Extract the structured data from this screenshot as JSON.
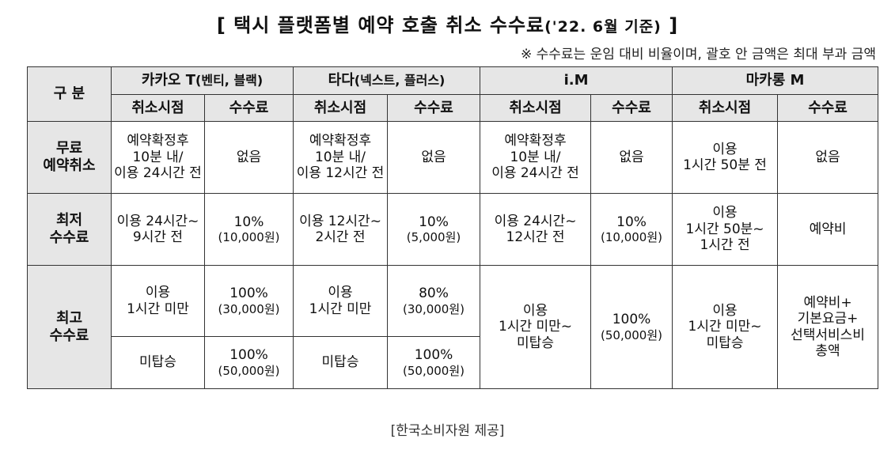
{
  "title": {
    "main": "[ 택시 플랫폼별 예약 호출 취소 수수료",
    "paren": "('22. 6월 기준)",
    "close": " ]"
  },
  "note": "※ 수수료는 운임 대비 비율이며, 괄호 안 금액은 최대 부과 금액",
  "table": {
    "corner": "구 분",
    "platforms": [
      {
        "name": "카카오 T",
        "sub": "(벤티, 블랙)"
      },
      {
        "name": "타다",
        "sub": "(넥스트, 플러스)"
      },
      {
        "name": "i.M",
        "sub": ""
      },
      {
        "name": "마카롱 M",
        "sub": ""
      }
    ],
    "col_cancel": "취소시점",
    "col_fee": "수수료",
    "rows": {
      "free": {
        "label": [
          "무료",
          "예약취소"
        ],
        "kakao_time": [
          "예약확정후",
          "10분 내/",
          "이용 24시간 전"
        ],
        "kakao_fee": [
          "없음"
        ],
        "tada_time": [
          "예약확정후",
          "10분 내/",
          "이용 12시간 전"
        ],
        "tada_fee": [
          "없음"
        ],
        "im_time": [
          "예약확정후",
          "10분 내/",
          "이용 24시간 전"
        ],
        "im_fee": [
          "없음"
        ],
        "macaron_time": [
          "이용",
          "1시간 50분 전"
        ],
        "macaron_fee": [
          "없음"
        ]
      },
      "min": {
        "label": [
          "최저",
          "수수료"
        ],
        "kakao_time": [
          "이용 24시간~",
          "9시간 전"
        ],
        "kakao_fee": [
          "10%",
          "(10,000원)"
        ],
        "tada_time": [
          "이용 12시간~",
          "2시간 전"
        ],
        "tada_fee": [
          "10%",
          "(5,000원)"
        ],
        "im_time": [
          "이용 24시간~",
          "12시간 전"
        ],
        "im_fee": [
          "10%",
          "(10,000원)"
        ],
        "macaron_time": [
          "이용",
          "1시간 50분~",
          "1시간 전"
        ],
        "macaron_fee": [
          "예약비"
        ]
      },
      "max": {
        "label": [
          "최고",
          "수수료"
        ],
        "kakao_time_1": [
          "이용",
          "1시간 미만"
        ],
        "kakao_fee_1": [
          "100%",
          "(30,000원)"
        ],
        "tada_time_1": [
          "이용",
          "1시간 미만"
        ],
        "tada_fee_1": [
          "80%",
          "(30,000원)"
        ],
        "im_time": [
          "이용",
          "1시간 미만~",
          "미탑승"
        ],
        "im_fee": [
          "100%",
          "(50,000원)"
        ],
        "macaron_time": [
          "이용",
          "1시간 미만~",
          "미탑승"
        ],
        "macaron_fee": [
          "예약비+",
          "기본요금+",
          "선택서비스비",
          "총액"
        ],
        "kakao_time_2": [
          "미탑승"
        ],
        "kakao_fee_2": [
          "100%",
          "(50,000원)"
        ],
        "tada_time_2": [
          "미탑승"
        ],
        "tada_fee_2": [
          "100%",
          "(50,000원)"
        ]
      }
    }
  },
  "source": "[한국소비자원 제공]"
}
